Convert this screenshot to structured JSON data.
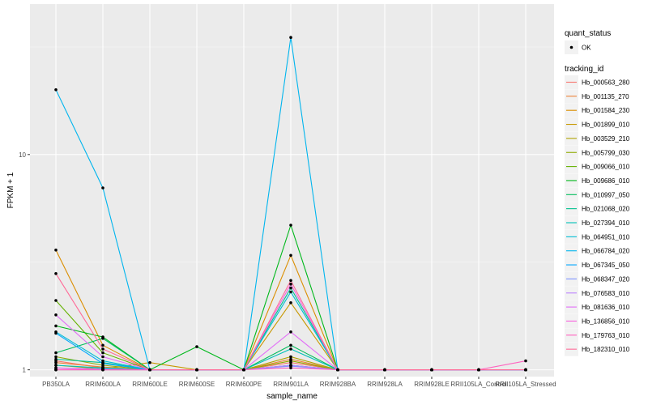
{
  "chart_data": {
    "type": "line",
    "xlabel": "sample_name",
    "ylabel": "FPKM + 1",
    "y_scale": "log10",
    "ylim": [
      0.93,
      50
    ],
    "y_ticks": [
      {
        "value": 1,
        "label": "1"
      },
      {
        "value": 10,
        "label": "10"
      }
    ],
    "grid": true,
    "legend_position": "right",
    "categories": [
      "PB350LA",
      "RRIM600LA",
      "RRIM600LE",
      "RRIM600SE",
      "RRIM600PE",
      "RRIM901LA",
      "RRIM928BA",
      "RRIM928LA",
      "RRIM928LE",
      "RRII105LA_Control",
      "RRII105LA_Stressed"
    ],
    "quant_status": {
      "title": "quant_status",
      "items": [
        {
          "label": "OK",
          "shape": "point",
          "color": "#000000"
        }
      ]
    },
    "legend_title": "tracking_id",
    "series": [
      {
        "name": "Hb_000563_280",
        "color": "#F8766D",
        "values": [
          1.1,
          1.02,
          1.0,
          1.0,
          1.0,
          1.08,
          1.0,
          1.0,
          1.0,
          1.0,
          1.0
        ]
      },
      {
        "name": "Hb_001135_270",
        "color": "#EC8239",
        "values": [
          1.08,
          1.03,
          1.0,
          1.0,
          1.0,
          1.12,
          1.0,
          1.0,
          1.0,
          1.0,
          1.0
        ]
      },
      {
        "name": "Hb_001584_230",
        "color": "#DB8E00",
        "values": [
          3.6,
          1.3,
          1.0,
          1.0,
          1.0,
          3.4,
          1.0,
          1.0,
          1.0,
          1.0,
          1.0
        ]
      },
      {
        "name": "Hb_001899_010",
        "color": "#C79800",
        "values": [
          1.05,
          1.01,
          1.08,
          1.0,
          1.0,
          2.05,
          1.0,
          1.0,
          1.0,
          1.0,
          1.0
        ]
      },
      {
        "name": "Hb_003529_210",
        "color": "#AEA200",
        "values": [
          1.0,
          1.0,
          1.0,
          1.0,
          1.0,
          1.15,
          1.0,
          1.0,
          1.0,
          1.0,
          1.0
        ]
      },
      {
        "name": "Hb_005799_030",
        "color": "#8FAA00",
        "values": [
          1.15,
          1.05,
          1.0,
          1.0,
          1.0,
          1.1,
          1.0,
          1.0,
          1.0,
          1.0,
          1.0
        ]
      },
      {
        "name": "Hb_009066_010",
        "color": "#64B200",
        "values": [
          2.1,
          1.2,
          1.0,
          1.0,
          1.0,
          1.05,
          1.0,
          1.0,
          1.0,
          1.0,
          1.0
        ]
      },
      {
        "name": "Hb_009686_010",
        "color": "#00B81B",
        "values": [
          1.6,
          1.42,
          1.0,
          1.28,
          1.0,
          4.7,
          1.0,
          1.0,
          1.0,
          1.0,
          1.0
        ]
      },
      {
        "name": "Hb_010997_050",
        "color": "#00BD5C",
        "values": [
          1.2,
          1.4,
          1.0,
          1.0,
          1.0,
          1.3,
          1.0,
          1.0,
          1.0,
          1.0,
          1.0
        ]
      },
      {
        "name": "Hb_021068_020",
        "color": "#00C08E",
        "values": [
          1.12,
          1.08,
          1.0,
          1.0,
          1.0,
          2.4,
          1.0,
          1.0,
          1.0,
          1.0,
          1.0
        ]
      },
      {
        "name": "Hb_027394_010",
        "color": "#00C1B7",
        "values": [
          1.05,
          1.02,
          1.0,
          1.0,
          1.0,
          1.25,
          1.0,
          1.0,
          1.0,
          1.0,
          1.0
        ]
      },
      {
        "name": "Hb_064951_010",
        "color": "#00BDD4",
        "values": [
          1.5,
          1.1,
          1.0,
          1.0,
          1.0,
          2.3,
          1.0,
          1.0,
          1.0,
          1.0,
          1.0
        ]
      },
      {
        "name": "Hb_066784_020",
        "color": "#00B5EE",
        "values": [
          20.0,
          7.0,
          1.0,
          1.0,
          1.0,
          35.0,
          1.0,
          1.0,
          1.0,
          1.0,
          1.0
        ]
      },
      {
        "name": "Hb_067345_050",
        "color": "#00A7FF",
        "values": [
          1.48,
          1.07,
          1.0,
          1.0,
          1.0,
          1.05,
          1.0,
          1.0,
          1.0,
          1.0,
          1.0
        ]
      },
      {
        "name": "Hb_068347_020",
        "color": "#7F96FF",
        "values": [
          1.02,
          1.01,
          1.0,
          1.0,
          1.0,
          1.04,
          1.0,
          1.0,
          1.0,
          1.0,
          1.0
        ]
      },
      {
        "name": "Hb_076583_010",
        "color": "#BC81FF",
        "values": [
          1.0,
          1.0,
          1.0,
          1.0,
          1.0,
          1.05,
          1.0,
          1.0,
          1.0,
          1.0,
          1.0
        ]
      },
      {
        "name": "Hb_081636_010",
        "color": "#E26EF7",
        "values": [
          1.8,
          1.15,
          1.0,
          1.0,
          1.0,
          1.5,
          1.0,
          1.0,
          1.0,
          1.0,
          1.0
        ]
      },
      {
        "name": "Hb_136856_010",
        "color": "#F863DF",
        "values": [
          1.02,
          1.0,
          1.0,
          1.0,
          1.0,
          2.5,
          1.0,
          1.0,
          1.0,
          1.0,
          1.0
        ]
      },
      {
        "name": "Hb_179763_010",
        "color": "#FF62BF",
        "values": [
          1.0,
          1.0,
          1.0,
          1.0,
          1.0,
          1.02,
          1.0,
          1.0,
          1.0,
          1.0,
          1.1
        ]
      },
      {
        "name": "Hb_182310_010",
        "color": "#FF6A98",
        "values": [
          2.8,
          1.25,
          1.0,
          1.0,
          1.0,
          2.6,
          1.0,
          1.0,
          1.0,
          1.0,
          1.0
        ]
      }
    ]
  }
}
